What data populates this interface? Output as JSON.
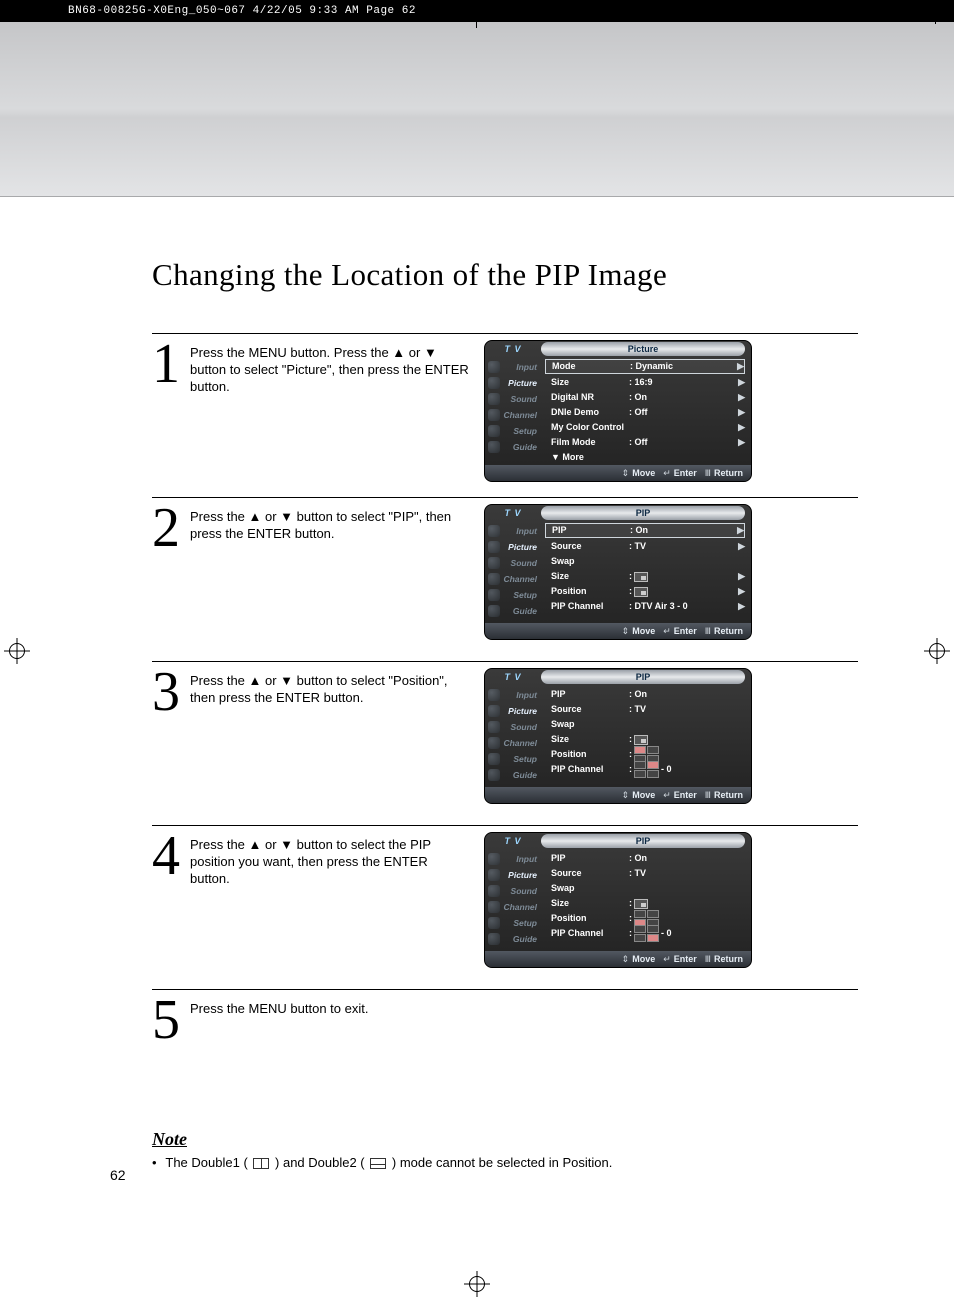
{
  "print_header": "BN68-00825G-X0Eng_050~067  4/22/05  9:33 AM  Page 62",
  "title": "Changing the Location of the PIP Image",
  "page_number": "62",
  "steps": [
    {
      "num": "1",
      "text": "Press the MENU button. Press the ▲ or ▼ button to select \"Picture\", then press the ENTER button.",
      "osd": {
        "source": "T V",
        "title": "Picture",
        "side": [
          {
            "label": "Input",
            "active": false
          },
          {
            "label": "Picture",
            "active": true
          },
          {
            "label": "Sound",
            "active": false
          },
          {
            "label": "Channel",
            "active": false
          },
          {
            "label": "Setup",
            "active": false
          },
          {
            "label": "Guide",
            "active": false
          }
        ],
        "rows": [
          {
            "k": "Mode",
            "v": ": Dynamic",
            "arr": "▶",
            "boxed": true
          },
          {
            "k": "Size",
            "v": ": 16:9",
            "arr": "▶"
          },
          {
            "k": "Digital NR",
            "v": ": On",
            "arr": "▶"
          },
          {
            "k": "DNIe Demo",
            "v": ": Off",
            "arr": "▶"
          },
          {
            "k": "My Color Control",
            "v": "",
            "arr": "▶"
          },
          {
            "k": "Film Mode",
            "v": ": Off",
            "arr": "▶"
          },
          {
            "k": "▼ More",
            "v": "",
            "arr": ""
          }
        ],
        "foot": [
          {
            "ico": "⇕",
            "label": "Move"
          },
          {
            "ico": "↵",
            "label": "Enter"
          },
          {
            "ico": "Ⅲ",
            "label": "Return"
          }
        ]
      }
    },
    {
      "num": "2",
      "text": "Press the ▲ or ▼ button to select \"PIP\", then press the ENTER button.",
      "osd": {
        "source": "T V",
        "title": "PIP",
        "side": [
          {
            "label": "Input",
            "active": false
          },
          {
            "label": "Picture",
            "active": true
          },
          {
            "label": "Sound",
            "active": false
          },
          {
            "label": "Channel",
            "active": false
          },
          {
            "label": "Setup",
            "active": false
          },
          {
            "label": "Guide",
            "active": false
          }
        ],
        "rows": [
          {
            "k": "PIP",
            "v": ": On",
            "arr": "▶",
            "boxed": true
          },
          {
            "k": "Source",
            "v": ": TV",
            "arr": "▶"
          },
          {
            "k": "Swap",
            "v": "",
            "arr": ""
          },
          {
            "k": "Size",
            "v_icon": "size",
            "arr": "▶"
          },
          {
            "k": "Position",
            "v_icon": "size",
            "arr": "▶"
          },
          {
            "k": "PIP Channel",
            "v": ": DTV Air 3 - 0",
            "arr": "▶"
          }
        ],
        "foot": [
          {
            "ico": "⇕",
            "label": "Move"
          },
          {
            "ico": "↵",
            "label": "Enter"
          },
          {
            "ico": "Ⅲ",
            "label": "Return"
          }
        ]
      }
    },
    {
      "num": "3",
      "text": "Press the ▲ or ▼ button to select \"Position\", then press the ENTER button.",
      "osd": {
        "source": "T V",
        "title": "PIP",
        "side": [
          {
            "label": "Input",
            "active": false
          },
          {
            "label": "Picture",
            "active": true
          },
          {
            "label": "Sound",
            "active": false
          },
          {
            "label": "Channel",
            "active": false
          },
          {
            "label": "Setup",
            "active": false
          },
          {
            "label": "Guide",
            "active": false
          }
        ],
        "rows": [
          {
            "k": "PIP",
            "v": ": On",
            "arr": ""
          },
          {
            "k": "Source",
            "v": ": TV",
            "arr": ""
          },
          {
            "k": "Swap",
            "v": "",
            "arr": ""
          },
          {
            "k": "Size",
            "v_icon": "size",
            "arr": ""
          },
          {
            "k": "Position",
            "v_icon": "posgrid",
            "sel": 0,
            "arr": ""
          },
          {
            "k": "PIP Channel",
            "v_icon": "posgrid",
            "sel": 1,
            "suffix": " - 0",
            "arr": ""
          }
        ],
        "foot": [
          {
            "ico": "⇕",
            "label": "Move"
          },
          {
            "ico": "↵",
            "label": "Enter"
          },
          {
            "ico": "Ⅲ",
            "label": "Return"
          }
        ]
      }
    },
    {
      "num": "4",
      "text": "Press the ▲ or ▼ button to select the PIP position you want, then press the ENTER button.",
      "osd": {
        "source": "T V",
        "title": "PIP",
        "side": [
          {
            "label": "Input",
            "active": false
          },
          {
            "label": "Picture",
            "active": true
          },
          {
            "label": "Sound",
            "active": false
          },
          {
            "label": "Channel",
            "active": false
          },
          {
            "label": "Setup",
            "active": false
          },
          {
            "label": "Guide",
            "active": false
          }
        ],
        "rows": [
          {
            "k": "PIP",
            "v": ": On",
            "arr": ""
          },
          {
            "k": "Source",
            "v": ": TV",
            "arr": ""
          },
          {
            "k": "Swap",
            "v": "",
            "arr": ""
          },
          {
            "k": "Size",
            "v_icon": "size",
            "arr": ""
          },
          {
            "k": "Position",
            "v_icon": "posgrid",
            "sel": 2,
            "arr": ""
          },
          {
            "k": "PIP Channel",
            "v_icon": "posgrid",
            "sel": 3,
            "suffix": " - 0",
            "arr": ""
          }
        ],
        "foot": [
          {
            "ico": "⇕",
            "label": "Move"
          },
          {
            "ico": "↵",
            "label": "Enter"
          },
          {
            "ico": "Ⅲ",
            "label": "Return"
          }
        ]
      }
    },
    {
      "num": "5",
      "text": "Press the MENU button to exit."
    }
  ],
  "note": {
    "heading": "Note",
    "text_pre": "The Double1 (",
    "icon1": "d1",
    "text_mid": ") and Double2 (",
    "icon2": "d2",
    "text_post": ") mode cannot be selected in Position."
  },
  "colors": {
    "osd_bg_top": "#3a3a3a",
    "osd_bg_bottom": "#222222",
    "osd_accent": "#9dd7ff",
    "osd_title_text": "#0b2742"
  }
}
